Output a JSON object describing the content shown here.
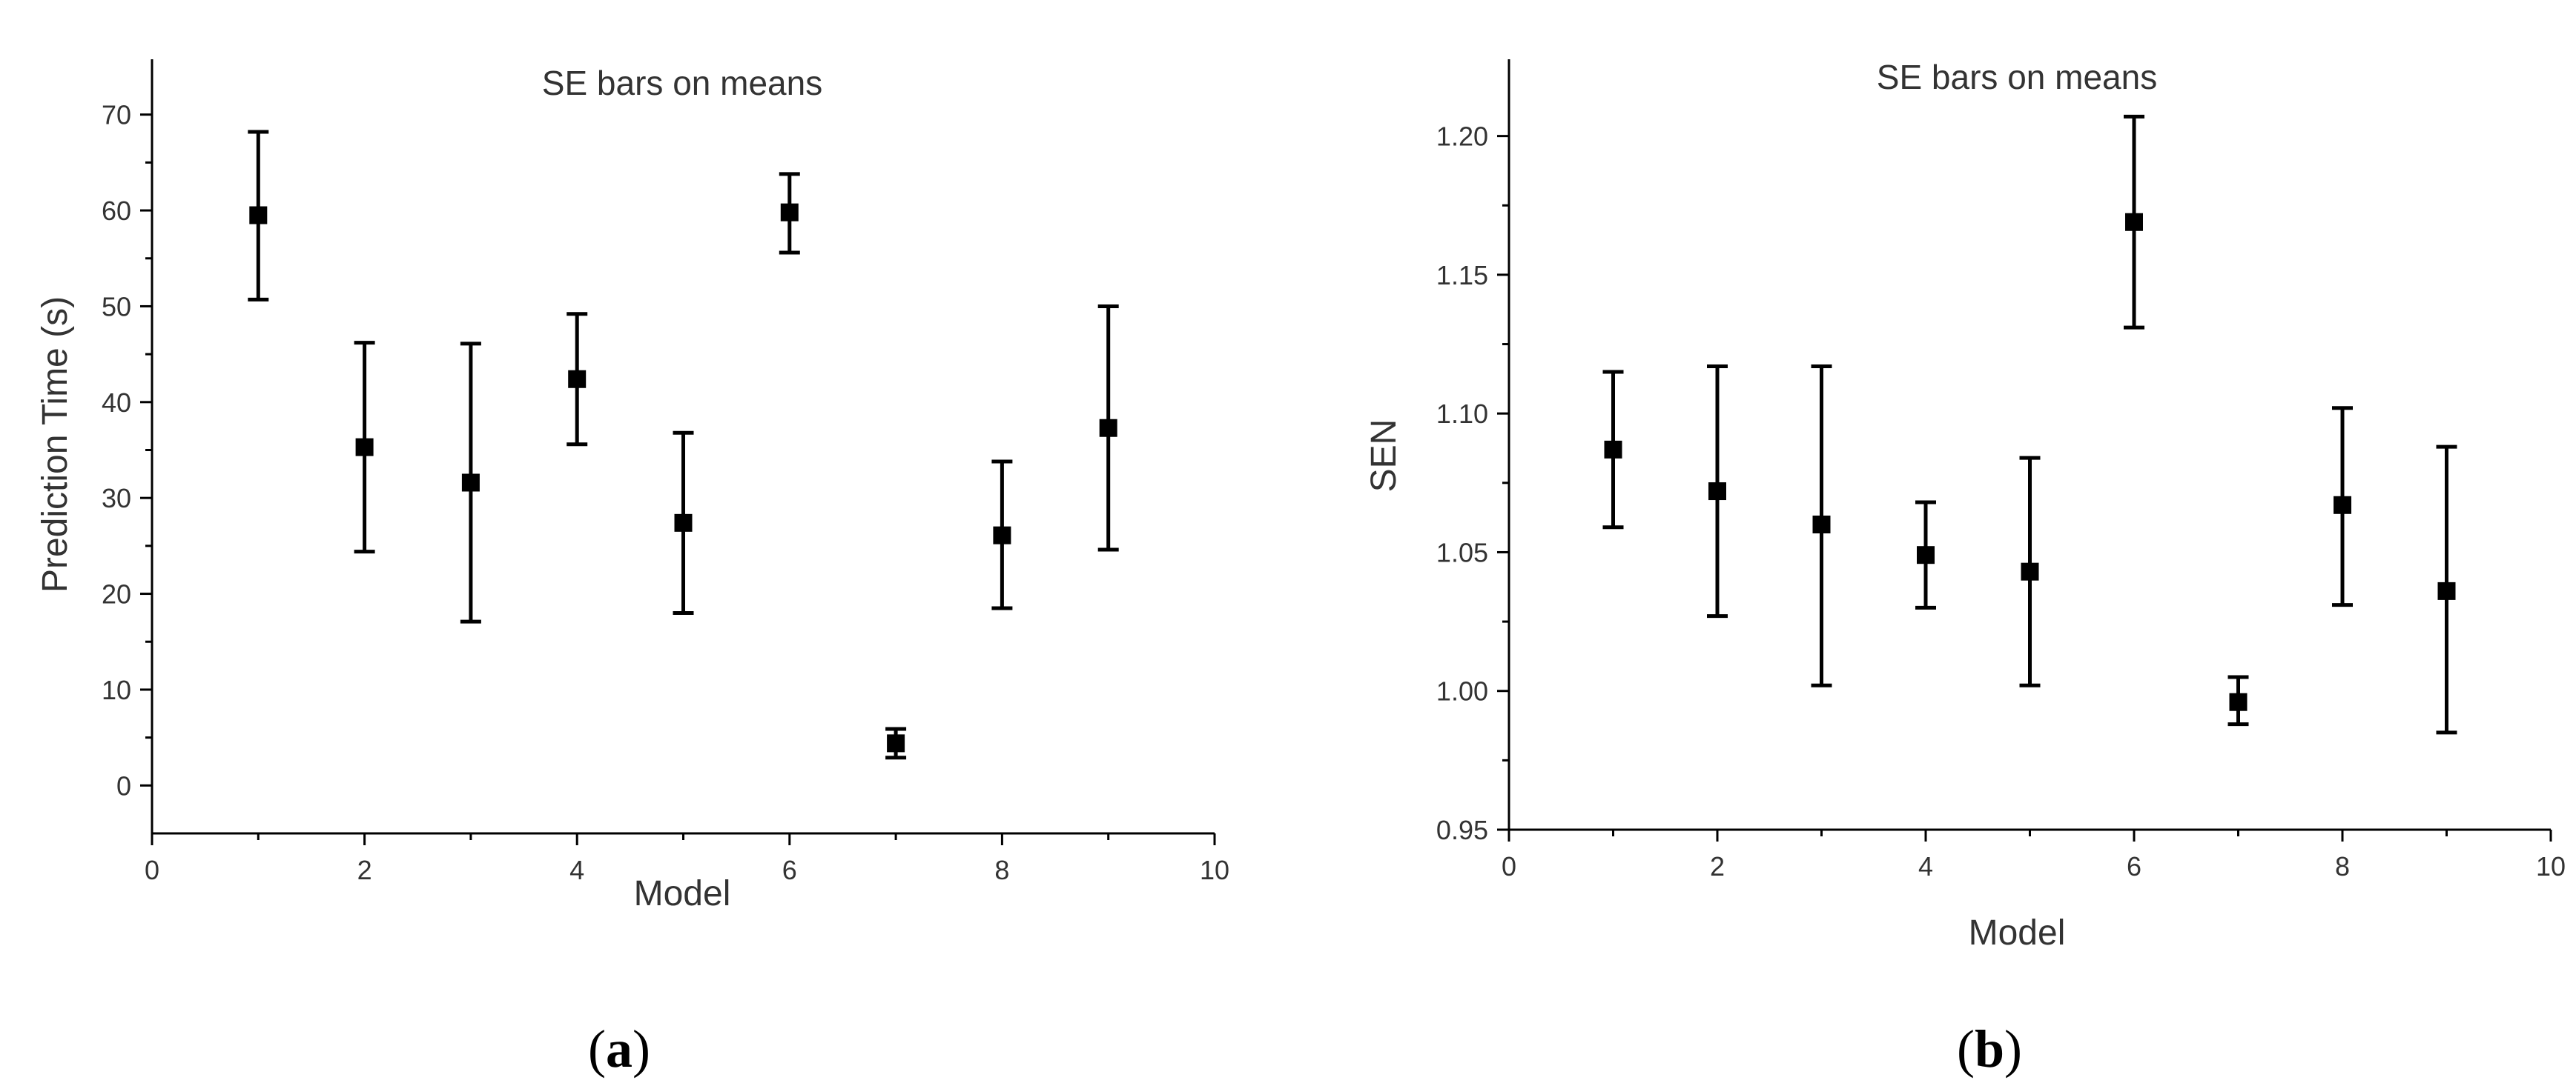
{
  "chart_data": [
    {
      "type": "scatter",
      "panel_label": [
        "(",
        "a",
        ")"
      ],
      "title": "SE bars on means",
      "xlabel": "Model",
      "ylabel": "Prediction Time (s)",
      "xlim": [
        0,
        10
      ],
      "ylim": [
        -5,
        75
      ],
      "xticks": [
        0,
        2,
        4,
        6,
        8,
        10
      ],
      "yticks": [
        0,
        10,
        20,
        30,
        40,
        50,
        60,
        70
      ],
      "ytick_labels": [
        "0",
        "10",
        "20",
        "30",
        "40",
        "50",
        "60",
        "70"
      ],
      "grid": false,
      "points": [
        {
          "x": 1,
          "y": 59.5,
          "low": 50.7,
          "high": 68.2
        },
        {
          "x": 2,
          "y": 35.3,
          "low": 24.4,
          "high": 46.2
        },
        {
          "x": 3,
          "y": 31.6,
          "low": 17.1,
          "high": 46.1
        },
        {
          "x": 4,
          "y": 42.4,
          "low": 35.6,
          "high": 49.2
        },
        {
          "x": 5,
          "y": 27.4,
          "low": 18.0,
          "high": 36.8
        },
        {
          "x": 6,
          "y": 59.8,
          "low": 55.6,
          "high": 63.8
        },
        {
          "x": 7,
          "y": 4.4,
          "low": 2.9,
          "high": 5.9
        },
        {
          "x": 8,
          "y": 26.1,
          "low": 18.5,
          "high": 33.8
        },
        {
          "x": 9,
          "y": 37.3,
          "low": 24.6,
          "high": 50.0
        }
      ]
    },
    {
      "type": "scatter",
      "panel_label": [
        "(",
        "b",
        ")"
      ],
      "title": "SE bars on means",
      "xlabel": "Model",
      "ylabel": "SEN",
      "xlim": [
        0,
        10
      ],
      "ylim": [
        0.95,
        1.225
      ],
      "xticks": [
        0,
        2,
        4,
        6,
        8,
        10
      ],
      "yticks": [
        0.95,
        1.0,
        1.05,
        1.1,
        1.15,
        1.2
      ],
      "ytick_labels": [
        "0.95",
        "1.00",
        "1.05",
        "1.10",
        "1.15",
        "1.20"
      ],
      "grid": false,
      "points": [
        {
          "x": 1,
          "y": 1.087,
          "low": 1.059,
          "high": 1.115
        },
        {
          "x": 2,
          "y": 1.072,
          "low": 1.027,
          "high": 1.117
        },
        {
          "x": 3,
          "y": 1.06,
          "low": 1.002,
          "high": 1.117
        },
        {
          "x": 4,
          "y": 1.049,
          "low": 1.03,
          "high": 1.068
        },
        {
          "x": 5,
          "y": 1.043,
          "low": 1.002,
          "high": 1.084
        },
        {
          "x": 6,
          "y": 1.169,
          "low": 1.131,
          "high": 1.207
        },
        {
          "x": 7,
          "y": 0.996,
          "low": 0.988,
          "high": 1.005
        },
        {
          "x": 8,
          "y": 1.067,
          "low": 1.031,
          "high": 1.102
        },
        {
          "x": 9,
          "y": 1.036,
          "low": 0.985,
          "high": 1.088
        }
      ]
    }
  ]
}
